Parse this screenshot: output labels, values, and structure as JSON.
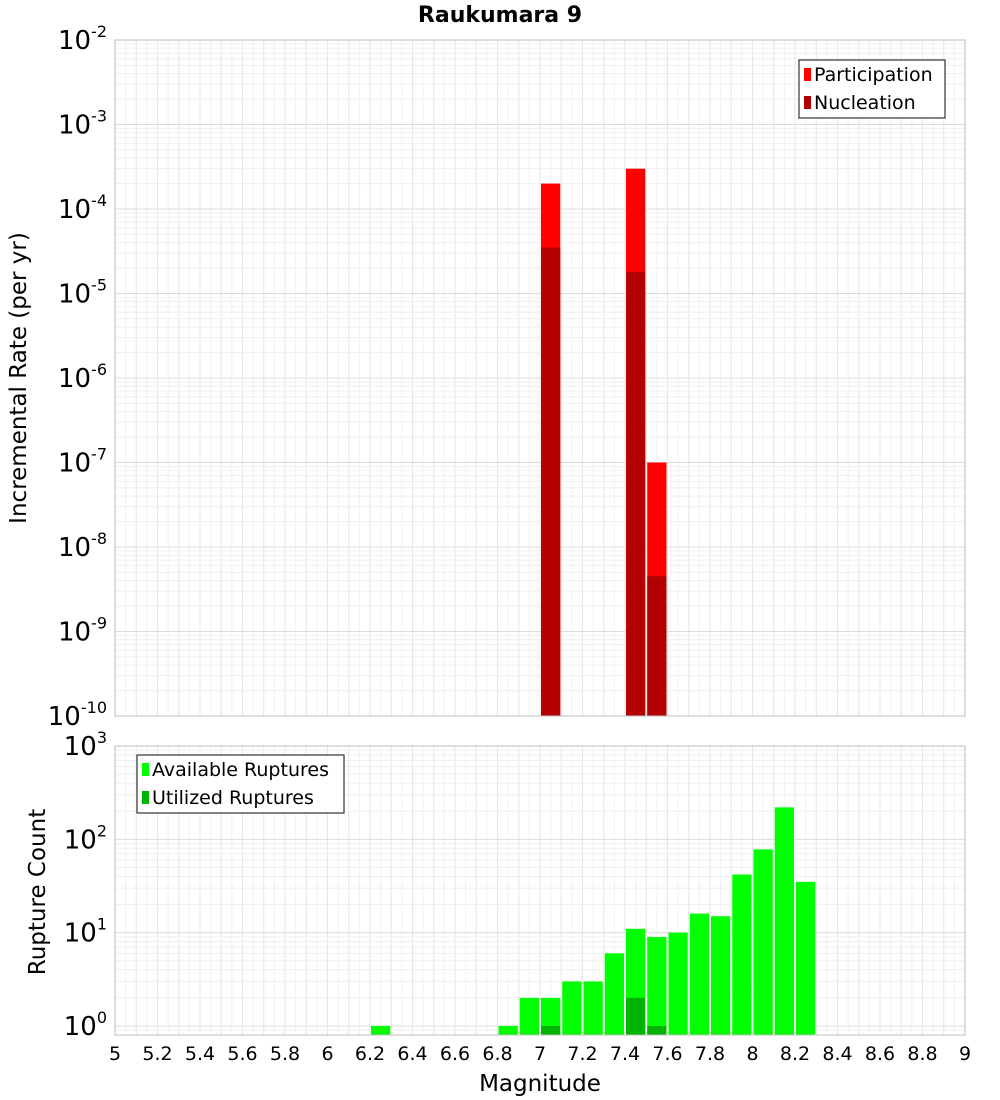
{
  "chart_data": [
    {
      "type": "bar",
      "title": "Raukumara 9",
      "xlabel": "",
      "ylabel": "Incremental Rate (per yr)",
      "yscale": "log",
      "xlim": [
        5,
        9
      ],
      "ylim": [
        1e-10,
        0.01
      ],
      "y_ticks": [
        {
          "base": "10",
          "exp": "-2"
        },
        {
          "base": "10",
          "exp": "-3"
        },
        {
          "base": "10",
          "exp": "-4"
        },
        {
          "base": "10",
          "exp": "-5"
        },
        {
          "base": "10",
          "exp": "-6"
        },
        {
          "base": "10",
          "exp": "-7"
        },
        {
          "base": "10",
          "exp": "-8"
        },
        {
          "base": "10",
          "exp": "-9"
        },
        {
          "base": "10",
          "exp": "-10"
        }
      ],
      "bin_width": 0.1,
      "grid": true,
      "legend_position": "top-right",
      "series": [
        {
          "name": "Participation",
          "color": "#ff0000",
          "points": [
            {
              "x": 7.05,
              "y": 0.0002
            },
            {
              "x": 7.45,
              "y": 0.0003
            },
            {
              "x": 7.55,
              "y": 1e-07
            }
          ]
        },
        {
          "name": "Nucleation",
          "color": "#b30000",
          "points": [
            {
              "x": 7.05,
              "y": 3.5e-05
            },
            {
              "x": 7.45,
              "y": 1.8e-05
            },
            {
              "x": 7.55,
              "y": 4.5e-09
            }
          ]
        }
      ]
    },
    {
      "type": "bar",
      "title": "",
      "xlabel": "Magnitude",
      "ylabel": "Rupture Count",
      "yscale": "log",
      "xlim": [
        5,
        9
      ],
      "ylim": [
        0.8,
        1000
      ],
      "x_ticks": [
        "5",
        "5.2",
        "5.4",
        "5.6",
        "5.8",
        "6",
        "6.2",
        "6.4",
        "6.6",
        "6.8",
        "7",
        "7.2",
        "7.4",
        "7.6",
        "7.8",
        "8",
        "8.2",
        "8.4",
        "8.6",
        "8.8",
        "9"
      ],
      "y_ticks": [
        {
          "base": "10",
          "exp": "3"
        },
        {
          "base": "10",
          "exp": "2"
        },
        {
          "base": "10",
          "exp": "1"
        },
        {
          "base": "10",
          "exp": "0"
        }
      ],
      "bin_width": 0.1,
      "grid": true,
      "legend_position": "top-left",
      "series": [
        {
          "name": "Available Ruptures",
          "color": "#00ff00",
          "points": [
            {
              "x": 6.25,
              "y": 1
            },
            {
              "x": 6.85,
              "y": 1
            },
            {
              "x": 6.95,
              "y": 2
            },
            {
              "x": 7.05,
              "y": 2
            },
            {
              "x": 7.15,
              "y": 3
            },
            {
              "x": 7.25,
              "y": 3
            },
            {
              "x": 7.35,
              "y": 6
            },
            {
              "x": 7.45,
              "y": 11
            },
            {
              "x": 7.55,
              "y": 9
            },
            {
              "x": 7.65,
              "y": 10
            },
            {
              "x": 7.75,
              "y": 16
            },
            {
              "x": 7.85,
              "y": 15
            },
            {
              "x": 7.95,
              "y": 42
            },
            {
              "x": 8.05,
              "y": 78
            },
            {
              "x": 8.15,
              "y": 220
            },
            {
              "x": 8.25,
              "y": 35
            }
          ]
        },
        {
          "name": "Utilized Ruptures",
          "color": "#00b300",
          "points": [
            {
              "x": 7.05,
              "y": 1
            },
            {
              "x": 7.45,
              "y": 2
            },
            {
              "x": 7.55,
              "y": 1
            }
          ]
        }
      ]
    }
  ]
}
